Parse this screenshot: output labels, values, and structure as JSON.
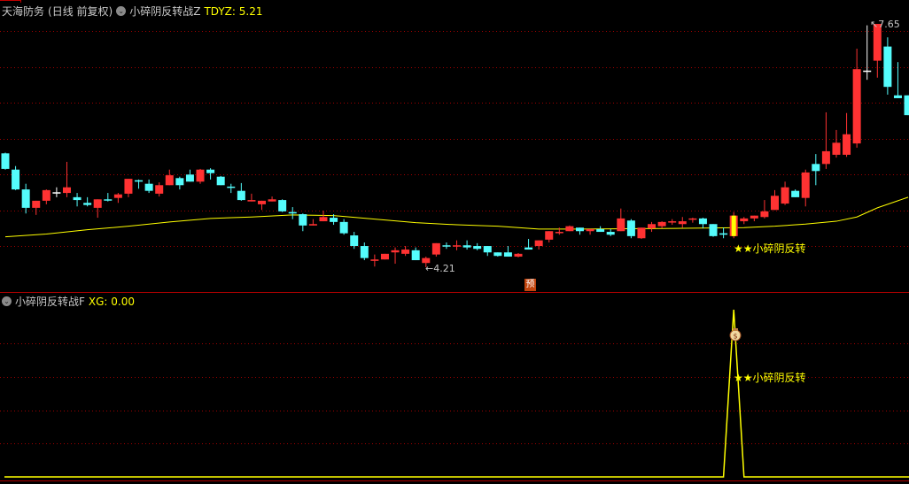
{
  "header": {
    "stock_name": "天海防务",
    "period": "(日线 前复权)",
    "indicator_main": "小碎阴反转战Z",
    "tdyz_label": "TDYZ: 5.21"
  },
  "sub_header": {
    "indicator_sub": "小碎阴反转战F",
    "xg_label": "XG: 0.00"
  },
  "colors": {
    "up": "#ff3232",
    "down": "#54fcfc",
    "ma": "#ffff00",
    "grid": "#a00000",
    "signal": "#ffff00",
    "doji_white": "#ffffff",
    "background": "#000000"
  },
  "annotations": {
    "low_label": "4.21",
    "high_label": "7.65",
    "forecast_badge": "预",
    "signal_text": "★★小碎阴反转",
    "signal_text_sub": "★★小碎阴反转"
  },
  "chart_data": [
    {
      "type": "candlestick",
      "title": "",
      "price_high": 7.65,
      "price_low": 4.21,
      "signal_index": 71,
      "candles_ohlc": [
        [
          5.82,
          5.6,
          5.83,
          5.59
        ],
        [
          5.59,
          5.31,
          5.64,
          5.3
        ],
        [
          5.31,
          5.05,
          5.39,
          4.97
        ],
        [
          5.05,
          5.15,
          5.15,
          4.95
        ],
        [
          5.15,
          5.3,
          5.31,
          5.1
        ],
        [
          5.27,
          5.27,
          5.34,
          5.2
        ],
        [
          5.26,
          5.34,
          5.7,
          5.2
        ],
        [
          5.2,
          5.16,
          5.26,
          5.07
        ],
        [
          5.12,
          5.09,
          5.2,
          5.07
        ],
        [
          5.05,
          5.17,
          5.17,
          4.91
        ],
        [
          5.17,
          5.16,
          5.26,
          5.14
        ],
        [
          5.19,
          5.24,
          5.26,
          5.12
        ],
        [
          5.25,
          5.46,
          5.46,
          5.2
        ],
        [
          5.44,
          5.42,
          5.45,
          5.32
        ],
        [
          5.39,
          5.29,
          5.45,
          5.26
        ],
        [
          5.25,
          5.37,
          5.41,
          5.21
        ],
        [
          5.37,
          5.51,
          5.59,
          5.37
        ],
        [
          5.47,
          5.37,
          5.49,
          5.31
        ],
        [
          5.52,
          5.42,
          5.59,
          5.42
        ],
        [
          5.42,
          5.59,
          5.6,
          5.39
        ],
        [
          5.59,
          5.54,
          5.61,
          5.45
        ],
        [
          5.49,
          5.37,
          5.5,
          5.37
        ],
        [
          5.35,
          5.34,
          5.39,
          5.26
        ],
        [
          5.29,
          5.16,
          5.4,
          5.15
        ],
        [
          5.14,
          5.16,
          5.25,
          5.14
        ],
        [
          5.1,
          5.15,
          5.15,
          5.02
        ],
        [
          5.14,
          5.17,
          5.21,
          5.14
        ],
        [
          5.16,
          5.0,
          5.17,
          4.99
        ],
        [
          4.99,
          4.97,
          5.06,
          4.89
        ],
        [
          4.96,
          4.8,
          4.97,
          4.72
        ],
        [
          4.8,
          4.82,
          4.89,
          4.8
        ],
        [
          4.86,
          4.92,
          5.01,
          4.86
        ],
        [
          4.91,
          4.85,
          4.96,
          4.81
        ],
        [
          4.85,
          4.69,
          4.89,
          4.67
        ],
        [
          4.66,
          4.51,
          4.71,
          4.47
        ],
        [
          4.51,
          4.34,
          4.56,
          4.31
        ],
        [
          4.3,
          4.32,
          4.39,
          4.22
        ],
        [
          4.32,
          4.4,
          4.4,
          4.32
        ],
        [
          4.42,
          4.45,
          4.49,
          4.26
        ],
        [
          4.4,
          4.46,
          4.51,
          4.37
        ],
        [
          4.45,
          4.31,
          4.49,
          4.31
        ],
        [
          4.27,
          4.34,
          4.36,
          4.21
        ],
        [
          4.39,
          4.55,
          4.55,
          4.36
        ],
        [
          4.52,
          4.51,
          4.56,
          4.47
        ],
        [
          4.51,
          4.52,
          4.59,
          4.45
        ],
        [
          4.52,
          4.49,
          4.59,
          4.46
        ],
        [
          4.51,
          4.47,
          4.55,
          4.45
        ],
        [
          4.51,
          4.42,
          4.51,
          4.37
        ],
        [
          4.42,
          4.37,
          4.42,
          4.36
        ],
        [
          4.42,
          4.36,
          4.51,
          4.36
        ],
        [
          4.36,
          4.4,
          4.41,
          4.35
        ],
        [
          4.49,
          4.46,
          4.61,
          4.46
        ],
        [
          4.51,
          4.59,
          4.59,
          4.46
        ],
        [
          4.6,
          4.72,
          4.72,
          4.56
        ],
        [
          4.7,
          4.71,
          4.77,
          4.67
        ],
        [
          4.72,
          4.79,
          4.8,
          4.72
        ],
        [
          4.77,
          4.72,
          4.77,
          4.67
        ],
        [
          4.72,
          4.75,
          4.75,
          4.67
        ],
        [
          4.75,
          4.71,
          4.79,
          4.71
        ],
        [
          4.71,
          4.67,
          4.75,
          4.65
        ],
        [
          4.72,
          4.9,
          5.04,
          4.72
        ],
        [
          4.87,
          4.65,
          4.89,
          4.62
        ],
        [
          4.62,
          4.77,
          4.77,
          4.61
        ],
        [
          4.76,
          4.82,
          4.85,
          4.71
        ],
        [
          4.79,
          4.85,
          4.86,
          4.76
        ],
        [
          4.85,
          4.86,
          4.89,
          4.81
        ],
        [
          4.82,
          4.86,
          4.92,
          4.77
        ],
        [
          4.89,
          4.9,
          4.91,
          4.84
        ],
        [
          4.9,
          4.82,
          4.91,
          4.76
        ],
        [
          4.82,
          4.65,
          4.82,
          4.64
        ],
        [
          4.69,
          4.67,
          4.77,
          4.62
        ],
        [
          4.65,
          4.94,
          4.99,
          4.62
        ],
        [
          4.86,
          4.9,
          4.92,
          4.82
        ],
        [
          4.9,
          4.94,
          4.94,
          4.86
        ],
        [
          4.92,
          5.0,
          5.16,
          4.9
        ],
        [
          5.02,
          5.22,
          5.3,
          5.02
        ],
        [
          5.11,
          5.34,
          5.42,
          5.09
        ],
        [
          5.29,
          5.2,
          5.31,
          5.2
        ],
        [
          5.19,
          5.55,
          5.59,
          5.07
        ],
        [
          5.67,
          5.57,
          5.81,
          5.37
        ],
        [
          5.67,
          5.85,
          6.4,
          5.6
        ],
        [
          5.8,
          5.97,
          6.15,
          5.76
        ],
        [
          5.8,
          6.09,
          6.39,
          5.77
        ],
        [
          5.96,
          7.01,
          7.3,
          5.9
        ],
        [
          6.99,
          6.99,
          7.63,
          6.86
        ],
        [
          7.13,
          7.65,
          7.65,
          6.89
        ],
        [
          7.33,
          6.76,
          7.46,
          6.65
        ],
        [
          6.64,
          6.6,
          7.11,
          6.6
        ],
        [
          6.64,
          6.36,
          6.64,
          6.36
        ]
      ],
      "ma_points": [
        [
          0,
          4.64
        ],
        [
          4,
          4.68
        ],
        [
          8,
          4.74
        ],
        [
          12,
          4.79
        ],
        [
          16,
          4.85
        ],
        [
          20,
          4.9
        ],
        [
          24,
          4.92
        ],
        [
          28,
          4.95
        ],
        [
          32,
          4.94
        ],
        [
          36,
          4.89
        ],
        [
          40,
          4.84
        ],
        [
          44,
          4.81
        ],
        [
          48,
          4.79
        ],
        [
          52,
          4.75
        ],
        [
          56,
          4.75
        ],
        [
          66,
          4.76
        ],
        [
          72,
          4.77
        ],
        [
          75,
          4.79
        ],
        [
          78,
          4.82
        ],
        [
          81,
          4.86
        ],
        [
          83,
          4.92
        ],
        [
          85,
          5.05
        ],
        [
          87,
          5.15
        ],
        [
          88,
          5.2
        ]
      ]
    },
    {
      "type": "line",
      "title": "",
      "series": [
        {
          "name": "XG",
          "signal_indices": [
            71
          ],
          "signal_value": 1,
          "base_value": 0
        }
      ]
    }
  ]
}
